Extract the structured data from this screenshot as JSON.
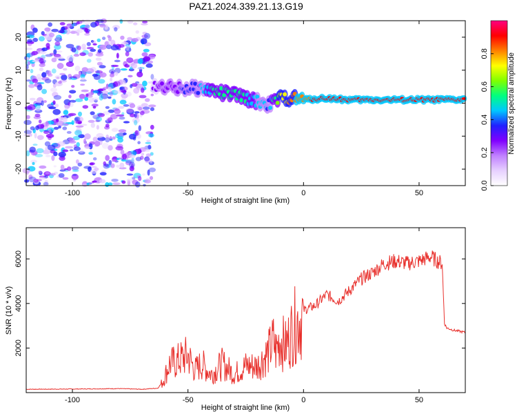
{
  "title": "PAZ1.2024.339.21.13.G19",
  "colors": {
    "snr_line": "#e8302c",
    "colormap": [
      "#ffffff",
      "#e6d0ff",
      "#c080ff",
      "#8000ff",
      "#2020ff",
      "#00c8ff",
      "#00ff80",
      "#80ff00",
      "#ffff00",
      "#ff8000",
      "#ff0000",
      "#ff0080"
    ]
  },
  "chart_data": [
    {
      "type": "heatmap",
      "xlabel": "Height of straight line (km)",
      "ylabel": "Frequency (Hz)",
      "xlim": [
        -120,
        70
      ],
      "ylim": [
        -25,
        25
      ],
      "xticks": [
        -100,
        -50,
        0,
        50
      ],
      "yticks": [
        -20,
        -10,
        0,
        10,
        20
      ],
      "xtick_labels": [
        "-100",
        "-50",
        "0",
        "50"
      ],
      "ytick_labels": [
        "-20",
        "-10",
        "0",
        "10",
        "20"
      ],
      "colorbar": {
        "label": "Normalized spectral amplitude",
        "range": [
          0,
          1
        ],
        "ticks": [
          0.0,
          0.2,
          0.4,
          0.6,
          0.8
        ],
        "tick_labels": [
          "0.0",
          "0.2",
          "0.4",
          "0.6",
          "0.8"
        ]
      },
      "signal_ridge": {
        "x": [
          -65,
          -60,
          -55,
          -50,
          -45,
          -40,
          -35,
          -30,
          -25,
          -20,
          -15,
          -10,
          -5,
          0,
          10,
          20,
          30,
          40,
          50,
          60,
          70
        ],
        "frequency": [
          5.5,
          5,
          4.5,
          4.5,
          4.5,
          4,
          3,
          2.5,
          1.5,
          0.5,
          -0.5,
          1.5,
          1.5,
          1,
          1.5,
          1,
          1,
          1,
          1,
          1,
          1
        ],
        "amplitude": [
          0.25,
          0.3,
          0.3,
          0.35,
          0.4,
          0.5,
          0.5,
          0.5,
          0.5,
          0.45,
          0.4,
          0.7,
          0.8,
          0.85,
          0.9,
          0.92,
          0.95,
          0.95,
          0.95,
          0.95,
          0.95
        ]
      },
      "noise_region": {
        "x": [
          -120,
          -65
        ],
        "amplitude": [
          0.02,
          0.2
        ]
      }
    },
    {
      "type": "line",
      "xlabel": "Height of straight line (km)",
      "ylabel": "SNR (10 * v/v)",
      "xlim": [
        -120,
        70
      ],
      "ylim": [
        0,
        7400
      ],
      "xticks": [
        -100,
        -50,
        0,
        50
      ],
      "yticks": [
        2000,
        4000,
        6000
      ],
      "xtick_labels": [
        "-100",
        "-50",
        "0",
        "50"
      ],
      "ytick_labels": [
        "2000",
        "4000",
        "6000"
      ],
      "series": [
        {
          "x": [
            -120,
            -100,
            -80,
            -70,
            -63,
            -61,
            -58,
            -55,
            -52,
            -50,
            -47,
            -44,
            -40,
            -35,
            -30,
            -25,
            -20,
            -15,
            -13,
            -12,
            -10,
            -8,
            -5,
            -2,
            0,
            5,
            10,
            15,
            20,
            25,
            30,
            35,
            40,
            45,
            50,
            55,
            58,
            60,
            61,
            62,
            65,
            70
          ],
          "y": [
            150,
            160,
            180,
            150,
            200,
            500,
            1400,
            1500,
            1700,
            1800,
            1100,
            1400,
            900,
            1400,
            900,
            1300,
            1300,
            2000,
            2500,
            2000,
            2700,
            2200,
            3000,
            3600,
            3700,
            3900,
            4400,
            4100,
            4600,
            5100,
            5400,
            5800,
            5900,
            5800,
            5900,
            6100,
            5900,
            5800,
            3100,
            2900,
            2800,
            2700
          ]
        }
      ]
    }
  ]
}
